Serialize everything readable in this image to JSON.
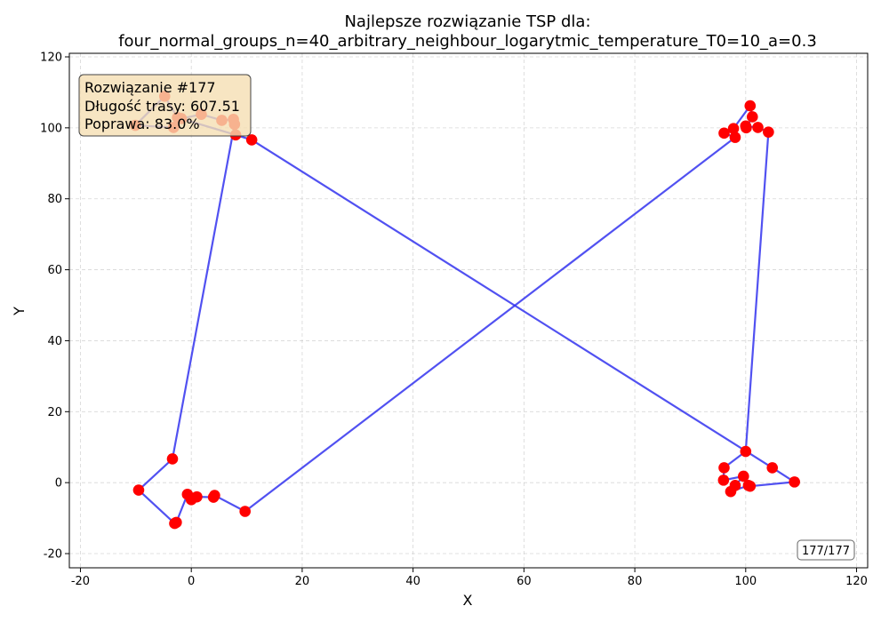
{
  "chart_data": {
    "type": "line",
    "title_line1": "Najlepsze rozwiązanie TSP dla:",
    "title_line2": "four_normal_groups_n=40_arbitrary_neighbour_logarytmic_temperature_T0=10_a=0.3",
    "xlabel": "X",
    "ylabel": "Y",
    "xlim": [
      -22,
      122
    ],
    "ylim": [
      -24,
      121
    ],
    "xticks": [
      -20,
      0,
      20,
      40,
      60,
      80,
      100,
      120
    ],
    "yticks": [
      -20,
      0,
      20,
      40,
      60,
      80,
      100,
      120
    ],
    "grid": true,
    "route_color": "#3333ee",
    "city_color": "#ff0000",
    "route": [
      [
        10.9,
        96.6
      ],
      [
        104.8,
        4.2
      ],
      [
        108.8,
        0.2
      ],
      [
        100.8,
        -1.0
      ],
      [
        100.5,
        -0.8
      ],
      [
        97.3,
        -2.5
      ],
      [
        98.1,
        -0.8
      ],
      [
        99.6,
        1.8
      ],
      [
        96.0,
        0.7
      ],
      [
        96.1,
        4.2
      ],
      [
        100.0,
        8.8
      ],
      [
        104.1,
        98.8
      ],
      [
        102.2,
        100.1
      ],
      [
        100.0,
        100.5
      ],
      [
        100.1,
        100.0
      ],
      [
        101.2,
        103.1
      ],
      [
        100.8,
        106.2
      ],
      [
        97.8,
        99.8
      ],
      [
        96.1,
        98.5
      ],
      [
        98.1,
        97.3
      ],
      [
        9.7,
        -8.1
      ],
      [
        4.2,
        -3.6
      ],
      [
        4.0,
        -4.1
      ],
      [
        1.0,
        -4.0
      ],
      [
        0.0,
        -4.8
      ],
      [
        -0.7,
        -3.3
      ],
      [
        -2.7,
        -11.2
      ],
      [
        -3.0,
        -11.5
      ],
      [
        -9.5,
        -2.1
      ],
      [
        -3.4,
        6.7
      ],
      [
        7.8,
        101.0
      ],
      [
        7.6,
        102.4
      ],
      [
        5.5,
        102.1
      ],
      [
        1.8,
        103.8
      ],
      [
        -1.8,
        102.6
      ],
      [
        -3.2,
        100.1
      ],
      [
        -10.1,
        100.7
      ],
      [
        -4.8,
        108.9
      ],
      [
        -2.5,
        102.9
      ],
      [
        8.0,
        98.0
      ]
    ],
    "info": {
      "solution": "Rozwiązanie #177",
      "length": "Długość trasy: 607.51",
      "improvement": "Poprawa: 83.0%"
    },
    "counter": "177/177"
  }
}
